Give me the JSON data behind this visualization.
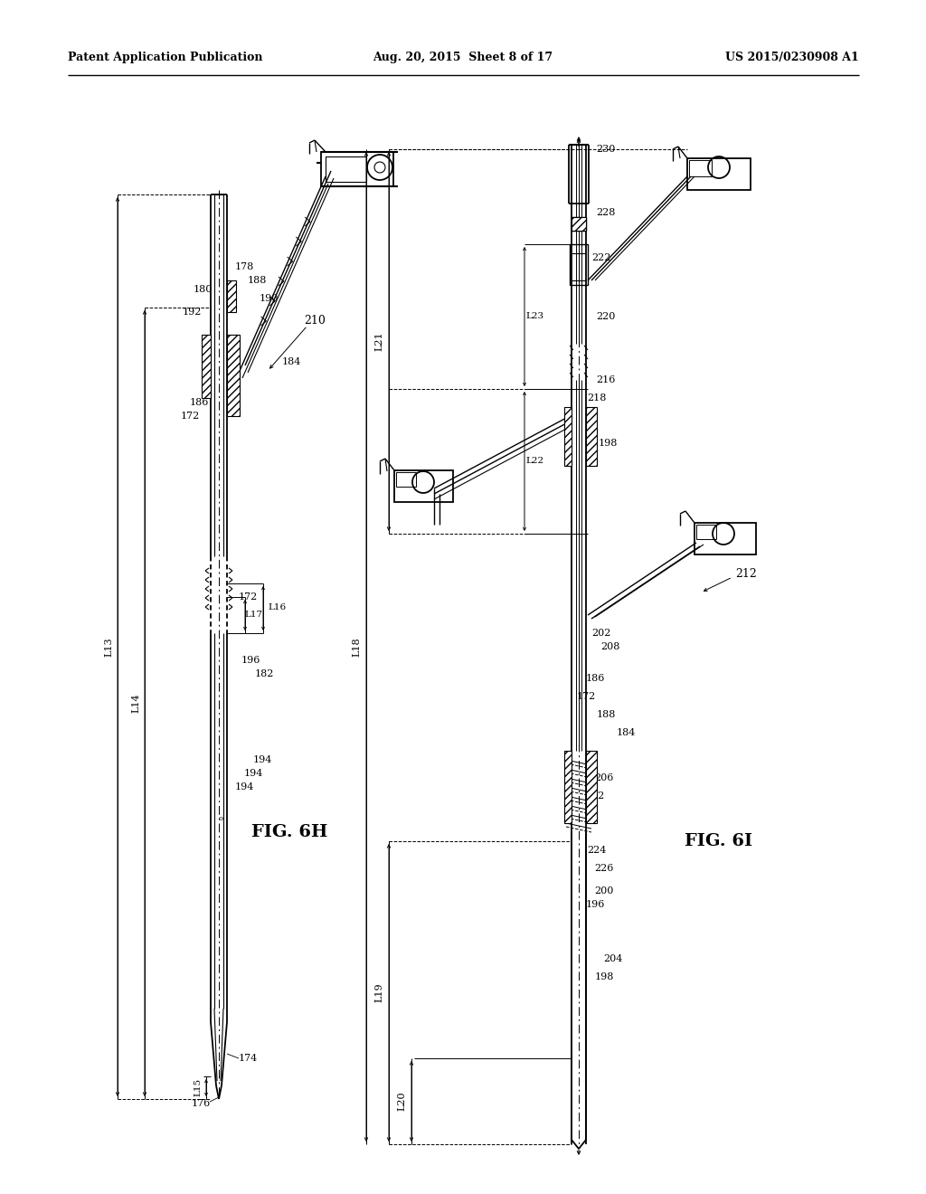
{
  "background_color": "#ffffff",
  "header_left": "Patent Application Publication",
  "header_center": "Aug. 20, 2015  Sheet 8 of 17",
  "header_right": "US 2015/0230908 A1",
  "fig6h_label": "FIG. 6H",
  "fig6i_label": "FIG. 6I"
}
